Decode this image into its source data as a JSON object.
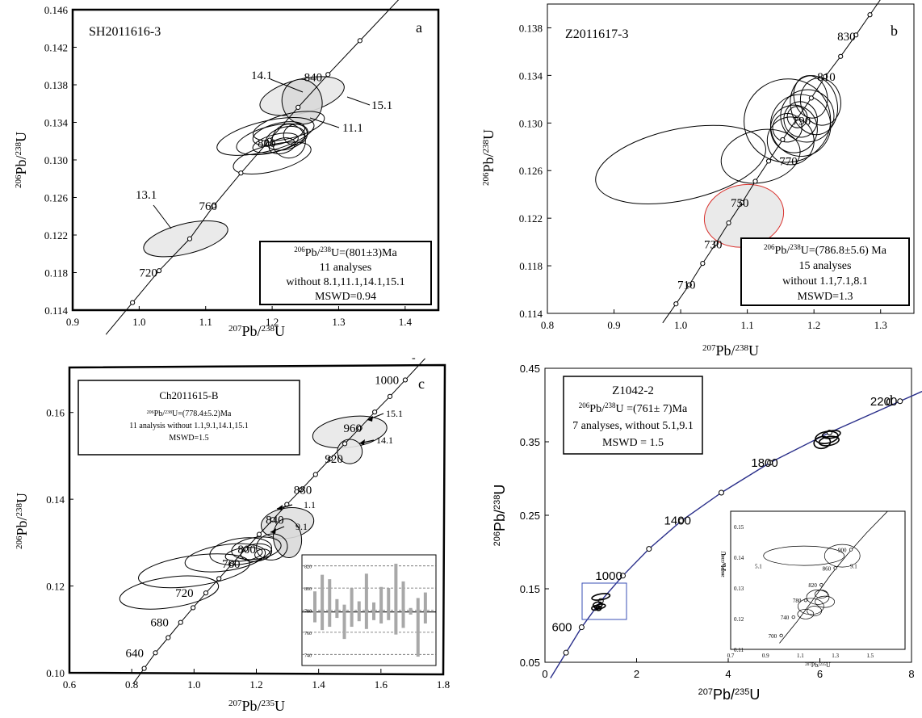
{
  "chart_data": [
    {
      "panel": "a",
      "type": "scatter",
      "sample_label": "SH2011616-3",
      "panel_letter": "a",
      "xlabel": "207Pb/238U",
      "ylabel": "206Pb/238U",
      "xlim": [
        0.9,
        1.45
      ],
      "ylim": [
        0.114,
        0.146
      ],
      "x_ticks": [
        "0.9",
        "1.0",
        "1.1",
        "1.2",
        "1.3",
        "1.4"
      ],
      "y_ticks": [
        "0.114",
        "0.118",
        "0.122",
        "0.126",
        "0.130",
        "0.134",
        "0.138",
        "0.142",
        "0.146"
      ],
      "concordia_ages": [
        {
          "x": 0.99,
          "y": 0.1148
        },
        {
          "x": 1.03,
          "y": 0.1182
        },
        {
          "x": 1.076,
          "y": 0.1216
        },
        {
          "x": 1.112,
          "y": 0.1251
        },
        {
          "x": 1.153,
          "y": 0.1286
        },
        {
          "x": 1.196,
          "y": 0.1321
        },
        {
          "x": 1.239,
          "y": 0.1356
        },
        {
          "x": 1.284,
          "y": 0.1391
        },
        {
          "x": 1.332,
          "y": 0.1427
        }
      ],
      "age_labels": [
        {
          "text": "720",
          "x": 1.0,
          "y": 0.118
        },
        {
          "text": "760",
          "x": 1.09,
          "y": 0.1251
        },
        {
          "text": "800",
          "x": 1.178,
          "y": 0.1318
        },
        {
          "text": "840",
          "x": 1.248,
          "y": 0.1388
        }
      ],
      "ellipses": [
        {
          "x": 1.07,
          "y": 0.1216,
          "rx": 0.065,
          "ry": 0.0016,
          "label": "13.1",
          "fill": "#e8e8e8"
        },
        {
          "x": 1.245,
          "y": 0.1368,
          "rx": 0.065,
          "ry": 0.0018,
          "label": "15.1",
          "fill": "#e8e8e8"
        },
        {
          "x": 1.245,
          "y": 0.1362,
          "rx": 0.03,
          "ry": 0.0024,
          "label": "14.1",
          "fill": "#d9d9d9"
        },
        {
          "x": 1.225,
          "y": 0.1336,
          "rx": 0.055,
          "ry": 0.0013,
          "label": "11.1",
          "fill": "none"
        },
        {
          "x": 1.19,
          "y": 0.1325,
          "rx": 0.075,
          "ry": 0.0016,
          "fill": "none"
        },
        {
          "x": 1.2,
          "y": 0.1322,
          "rx": 0.055,
          "ry": 0.0014,
          "fill": "none"
        },
        {
          "x": 1.21,
          "y": 0.1328,
          "rx": 0.04,
          "ry": 0.0011,
          "fill": "none"
        },
        {
          "x": 1.2,
          "y": 0.1302,
          "rx": 0.06,
          "ry": 0.0014,
          "fill": "none"
        },
        {
          "x": 1.225,
          "y": 0.132,
          "rx": 0.025,
          "ry": 0.0018,
          "fill": "none"
        },
        {
          "x": 1.22,
          "y": 0.1323,
          "rx": 0.03,
          "ry": 0.0012,
          "fill": "none"
        },
        {
          "x": 1.235,
          "y": 0.1327,
          "rx": 0.018,
          "ry": 0.0011,
          "fill": "none"
        },
        {
          "x": 1.205,
          "y": 0.1318,
          "rx": 0.035,
          "ry": 0.0009,
          "fill": "none"
        },
        {
          "x": 1.215,
          "y": 0.1315,
          "rx": 0.02,
          "ry": 0.0008,
          "fill": "none"
        }
      ],
      "result_box": {
        "line1": "206Pb/238U=(801±3)Ma",
        "line2": "11 analyses",
        "line3": "without 8.1,11.1,14.1,15.1",
        "line4": "MSWD=0.94"
      }
    },
    {
      "panel": "b",
      "type": "scatter",
      "sample_label": "Z2011617-3",
      "panel_letter": "b",
      "xlabel": "207Pb/238U",
      "ylabel": "206Pb/238U",
      "xlim": [
        0.8,
        1.35
      ],
      "ylim": [
        0.114,
        0.14
      ],
      "x_ticks": [
        "0.8",
        "0.9",
        "1.0",
        "1.1",
        "1.2",
        "1.3"
      ],
      "y_ticks": [
        "0.114",
        "0.118",
        "0.122",
        "0.126",
        "0.130",
        "0.134",
        "0.138"
      ],
      "concordia_ages": [
        {
          "x": 0.993,
          "y": 0.1148
        },
        {
          "x": 1.013,
          "y": 0.1164
        },
        {
          "x": 1.033,
          "y": 0.1182
        },
        {
          "x": 1.053,
          "y": 0.1199
        },
        {
          "x": 1.072,
          "y": 0.1216
        },
        {
          "x": 1.092,
          "y": 0.1233
        },
        {
          "x": 1.112,
          "y": 0.1251
        },
        {
          "x": 1.132,
          "y": 0.1268
        },
        {
          "x": 1.153,
          "y": 0.1286
        },
        {
          "x": 1.175,
          "y": 0.1304
        },
        {
          "x": 1.196,
          "y": 0.1321
        },
        {
          "x": 1.217,
          "y": 0.1339
        },
        {
          "x": 1.24,
          "y": 0.1356
        },
        {
          "x": 1.263,
          "y": 0.1374
        },
        {
          "x": 1.284,
          "y": 0.1391
        }
      ],
      "age_labels": [
        {
          "text": "710",
          "x": 0.995,
          "y": 0.1164
        },
        {
          "text": "730",
          "x": 1.035,
          "y": 0.1198
        },
        {
          "text": "750",
          "x": 1.075,
          "y": 0.1233
        },
        {
          "text": "770",
          "x": 1.148,
          "y": 0.1268
        },
        {
          "text": "790",
          "x": 1.168,
          "y": 0.1302
        },
        {
          "text": "810",
          "x": 1.205,
          "y": 0.1339
        },
        {
          "text": "830",
          "x": 1.235,
          "y": 0.1373
        }
      ],
      "ellipses": [
        {
          "x": 1.095,
          "y": 0.1222,
          "rx": 0.06,
          "ry": 0.0026,
          "fill": "#e8e8e8",
          "stroke": "#d9302c"
        },
        {
          "x": 1.0,
          "y": 0.1265,
          "rx": 0.13,
          "ry": 0.003,
          "fill": "none"
        },
        {
          "x": 1.12,
          "y": 0.1272,
          "rx": 0.06,
          "ry": 0.0022,
          "fill": "none"
        },
        {
          "x": 1.16,
          "y": 0.1302,
          "rx": 0.065,
          "ry": 0.0035,
          "fill": "none"
        },
        {
          "x": 1.18,
          "y": 0.1298,
          "rx": 0.045,
          "ry": 0.0026,
          "fill": "none"
        },
        {
          "x": 1.17,
          "y": 0.1295,
          "rx": 0.035,
          "ry": 0.002,
          "fill": "none"
        },
        {
          "x": 1.18,
          "y": 0.1303,
          "rx": 0.025,
          "ry": 0.0015,
          "fill": "none"
        },
        {
          "x": 1.2,
          "y": 0.1315,
          "rx": 0.035,
          "ry": 0.0025,
          "fill": "none"
        },
        {
          "x": 1.16,
          "y": 0.1296,
          "rx": 0.022,
          "ry": 0.0012,
          "fill": "none"
        },
        {
          "x": 1.19,
          "y": 0.1306,
          "rx": 0.04,
          "ry": 0.0022,
          "fill": "none"
        },
        {
          "x": 1.21,
          "y": 0.1318,
          "rx": 0.03,
          "ry": 0.002,
          "fill": "none"
        },
        {
          "x": 1.195,
          "y": 0.1322,
          "rx": 0.025,
          "ry": 0.0018,
          "fill": "none"
        },
        {
          "x": 1.175,
          "y": 0.1305,
          "rx": 0.015,
          "ry": 0.0009,
          "fill": "none"
        },
        {
          "x": 1.165,
          "y": 0.1285,
          "rx": 0.035,
          "ry": 0.002,
          "fill": "none"
        }
      ],
      "result_box": {
        "line1": "206Pb/238U=(786.8±5.6) Ma",
        "line2": "15 analyses",
        "line3": "without 1.1,7.1,8.1",
        "line4": "MSWD=1.3"
      }
    },
    {
      "panel": "c",
      "type": "scatter",
      "sample_label": "Ch2011615-B",
      "panel_letter": "c",
      "xlabel": "207Pb/235U",
      "ylabel": "206Pb/238U",
      "xlim": [
        0.6,
        1.8
      ],
      "ylim": [
        0.1,
        0.17
      ],
      "x_ticks": [
        "0.6",
        "0.8",
        "1.0",
        "1.2",
        "1.4",
        "1.6",
        "1.8"
      ],
      "y_ticks": [
        "0.10",
        "0.12",
        "0.14",
        "0.16"
      ],
      "concordia_ages": [
        {
          "x": 0.84,
          "y": 0.101
        },
        {
          "x": 0.876,
          "y": 0.1046
        },
        {
          "x": 0.917,
          "y": 0.1081
        },
        {
          "x": 0.957,
          "y": 0.1116
        },
        {
          "x": 0.997,
          "y": 0.115
        },
        {
          "x": 1.038,
          "y": 0.1184
        },
        {
          "x": 1.08,
          "y": 0.1217
        },
        {
          "x": 1.122,
          "y": 0.1251
        },
        {
          "x": 1.165,
          "y": 0.1285
        },
        {
          "x": 1.209,
          "y": 0.1319
        },
        {
          "x": 1.253,
          "y": 0.1353
        },
        {
          "x": 1.298,
          "y": 0.1388
        },
        {
          "x": 1.344,
          "y": 0.1422
        },
        {
          "x": 1.39,
          "y": 0.1457
        },
        {
          "x": 1.437,
          "y": 0.1493
        },
        {
          "x": 1.484,
          "y": 0.1528
        },
        {
          "x": 1.532,
          "y": 0.1564
        },
        {
          "x": 1.58,
          "y": 0.1601
        },
        {
          "x": 1.629,
          "y": 0.1637
        },
        {
          "x": 1.678,
          "y": 0.1675
        }
      ],
      "age_labels": [
        {
          "text": "640",
          "x": 0.78,
          "y": 0.1046
        },
        {
          "text": "680",
          "x": 0.86,
          "y": 0.1116
        },
        {
          "text": "720",
          "x": 0.94,
          "y": 0.1184
        },
        {
          "text": "760",
          "x": 1.09,
          "y": 0.1251
        },
        {
          "text": "800",
          "x": 1.14,
          "y": 0.1285
        },
        {
          "text": "840",
          "x": 1.23,
          "y": 0.1353
        },
        {
          "text": "880",
          "x": 1.32,
          "y": 0.1422
        },
        {
          "text": "920",
          "x": 1.42,
          "y": 0.1493
        },
        {
          "text": "960",
          "x": 1.48,
          "y": 0.1564
        },
        {
          "text": "1000",
          "x": 1.58,
          "y": 0.1675
        }
      ],
      "ellipses": [
        {
          "x": 1.5,
          "y": 0.1555,
          "rx": 0.12,
          "ry": 0.0035,
          "label": "15.1",
          "fill": "#e8e8e8"
        },
        {
          "x": 1.5,
          "y": 0.151,
          "rx": 0.04,
          "ry": 0.0028,
          "label": "14.1",
          "fill": "#e8e8e8"
        },
        {
          "x": 1.3,
          "y": 0.1345,
          "rx": 0.085,
          "ry": 0.0035,
          "label": "1.1",
          "fill": "#e0e0e0"
        },
        {
          "x": 1.3,
          "y": 0.131,
          "rx": 0.045,
          "ry": 0.0045,
          "label": "9.1",
          "fill": "#d9d9d9"
        },
        {
          "x": 0.92,
          "y": 0.1185,
          "rx": 0.16,
          "ry": 0.0035,
          "fill": "none"
        },
        {
          "x": 1.0,
          "y": 0.1235,
          "rx": 0.18,
          "ry": 0.0035,
          "fill": "none"
        },
        {
          "x": 1.1,
          "y": 0.1265,
          "rx": 0.13,
          "ry": 0.003,
          "fill": "none"
        },
        {
          "x": 1.15,
          "y": 0.128,
          "rx": 0.1,
          "ry": 0.003,
          "fill": "none"
        },
        {
          "x": 1.2,
          "y": 0.1287,
          "rx": 0.08,
          "ry": 0.0025,
          "fill": "none"
        },
        {
          "x": 1.2,
          "y": 0.1277,
          "rx": 0.05,
          "ry": 0.002,
          "fill": "none"
        },
        {
          "x": 1.25,
          "y": 0.129,
          "rx": 0.05,
          "ry": 0.003,
          "fill": "none"
        },
        {
          "x": 1.16,
          "y": 0.1273,
          "rx": 0.06,
          "ry": 0.0015,
          "fill": "none"
        },
        {
          "x": 1.22,
          "y": 0.1273,
          "rx": 0.025,
          "ry": 0.0012,
          "fill": "none"
        }
      ],
      "arrow_labels": [
        "15.1",
        "14.1",
        "1.1",
        "9.1"
      ],
      "result_box": {
        "line1": "Ch2011615-B",
        "line2": "206Pb/238U=(778.4±5.2)Ma",
        "line3": "11 analysis without 1.1,9.1,14.1,15.1",
        "line4": "MSWD=1.5"
      },
      "inset": {
        "type": "bar",
        "y_ticks": [
          "820",
          "800",
          "780",
          "760",
          "740"
        ],
        "ylim": [
          730,
          830
        ],
        "mean": 778.4,
        "bars": [
          {
            "lo": 769,
            "hi": 797
          },
          {
            "lo": 762,
            "hi": 812
          },
          {
            "lo": 765,
            "hi": 808
          },
          {
            "lo": 773,
            "hi": 790
          },
          {
            "lo": 754,
            "hi": 785
          },
          {
            "lo": 765,
            "hi": 800
          },
          {
            "lo": 770,
            "hi": 788
          },
          {
            "lo": 763,
            "hi": 813
          },
          {
            "lo": 771,
            "hi": 787
          },
          {
            "lo": 768,
            "hi": 801
          },
          {
            "lo": 771,
            "hi": 800
          },
          {
            "lo": 758,
            "hi": 822
          },
          {
            "lo": 764,
            "hi": 806
          },
          {
            "lo": 776,
            "hi": 782
          },
          {
            "lo": 738,
            "hi": 791
          },
          {
            "lo": 768,
            "hi": 796
          }
        ]
      }
    },
    {
      "panel": "d",
      "type": "scatter",
      "sample_label": "Z1042-2",
      "panel_letter": "d",
      "xlabel": "207Pb/235U",
      "ylabel": "206Pb/238U",
      "xlim": [
        0,
        8
      ],
      "ylim": [
        0.05,
        0.45
      ],
      "x_ticks": [
        "0",
        "2",
        "4",
        "6",
        "8"
      ],
      "y_ticks": [
        "0.05",
        "0.15",
        "0.25",
        "0.35",
        "0.45"
      ],
      "concordia_ages": [
        {
          "x": 0.46,
          "y": 0.063
        },
        {
          "x": 0.8,
          "y": 0.0976
        },
        {
          "x": 1.22,
          "y": 0.1334
        },
        {
          "x": 1.7,
          "y": 0.1678
        },
        {
          "x": 2.27,
          "y": 0.2043
        },
        {
          "x": 2.98,
          "y": 0.2426
        },
        {
          "x": 3.85,
          "y": 0.2808
        },
        {
          "x": 4.91,
          "y": 0.3216
        },
        {
          "x": 6.21,
          "y": 0.3625
        },
        {
          "x": 7.75,
          "y": 0.4052
        }
      ],
      "age_labels": [
        {
          "text": "600",
          "x": 0.15,
          "y": 0.0976
        },
        {
          "text": "1000",
          "x": 1.1,
          "y": 0.1678
        },
        {
          "text": "1400",
          "x": 2.6,
          "y": 0.2426
        },
        {
          "text": "1800",
          "x": 4.5,
          "y": 0.3216
        },
        {
          "text": "2200",
          "x": 7.1,
          "y": 0.4052
        }
      ],
      "ellipses": [
        {
          "x": 6.15,
          "y": 0.356,
          "rx": 0.25,
          "ry": 0.008,
          "fill": "none"
        },
        {
          "x": 6.2,
          "y": 0.351,
          "rx": 0.22,
          "ry": 0.006,
          "fill": "none"
        },
        {
          "x": 6.05,
          "y": 0.349,
          "rx": 0.18,
          "ry": 0.008,
          "fill": "none"
        },
        {
          "x": 6.25,
          "y": 0.36,
          "rx": 0.2,
          "ry": 0.005,
          "fill": "none"
        },
        {
          "x": 1.22,
          "y": 0.139,
          "rx": 0.2,
          "ry": 0.004,
          "fill": "none"
        },
        {
          "x": 1.15,
          "y": 0.128,
          "rx": 0.1,
          "ry": 0.004,
          "fill": "none"
        },
        {
          "x": 1.2,
          "y": 0.126,
          "rx": 0.12,
          "ry": 0.003,
          "fill": "none"
        },
        {
          "x": 1.1,
          "y": 0.124,
          "rx": 0.08,
          "ry": 0.003,
          "fill": "none"
        },
        {
          "x": 1.17,
          "y": 0.1235,
          "rx": 0.06,
          "ry": 0.003,
          "fill": "none"
        }
      ],
      "result_box": {
        "line1": "Z1042-2",
        "line2": "206Pb/238U =(761± 7)Ma",
        "line3": "7 analyses, without 5.1,9.1",
        "line4": "MSWD = 1.5"
      },
      "inset": {
        "type": "scatter",
        "xlim": [
          0.7,
          1.7
        ],
        "ylim": [
          0.11,
          0.155
        ],
        "x_ticks": [
          "0.7",
          "0.9",
          "1.1",
          "1.3",
          "1.5"
        ],
        "y_ticks": [
          "0.11",
          "0.12",
          "0.13",
          "0.14",
          "0.15"
        ],
        "xlabel": "207Pb/235U",
        "ylabel": "206Pb/238U",
        "age_labels": [
          "700",
          "740",
          "780",
          "820",
          "860",
          "900"
        ],
        "ellipse_labels": [
          "5.1",
          "9.1"
        ]
      }
    }
  ],
  "stray_mark": "-"
}
